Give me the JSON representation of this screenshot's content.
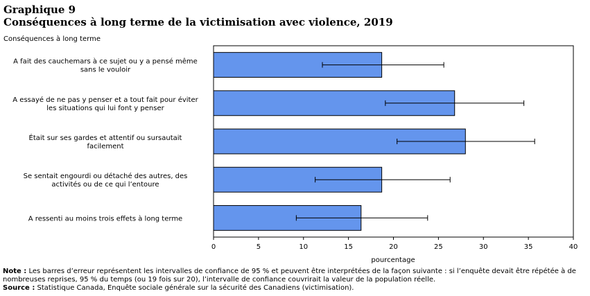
{
  "header": {
    "chart_number": "Graphique 9",
    "title": "Conséquences à long terme de la victimisation avec violence, 2019"
  },
  "notes": {
    "note_label": "Note :",
    "note_text": " Les barres d’erreur représentent les intervalles de confiance de 95 % et peuvent être interprétées de la façon suivante : si l’enquête devait être répétée à de nombreuses reprises, 95 % du temps (ou 19 fois sur 20), l’intervalle de confiance couvrirait la valeur de la population réelle.",
    "source_label": "Source :",
    "source_text": " Statistique Canada, Enquête sociale générale sur la sécurité des Canadiens (victimisation)."
  },
  "chart_data": {
    "type": "bar",
    "orientation": "horizontal",
    "ylabel": "Conséquences à long terme",
    "xlabel": "pourcentage",
    "xlim": [
      0,
      40
    ],
    "xticks": [
      0,
      5,
      10,
      15,
      20,
      25,
      30,
      35,
      40
    ],
    "grid": false,
    "bar_color": "#6495ED",
    "categories": [
      [
        "A fait des cauchemars à ce sujet ou y a pensé même",
        "sans le vouloir"
      ],
      [
        "A essayé de ne pas y penser et a tout fait pour éviter",
        "les situations qui lui font y penser"
      ],
      [
        "Était sur ses gardes et attentif ou sursautait",
        "facilement"
      ],
      [
        "Se sentait engourdi ou détaché des autres, des",
        "activités ou de ce qui l’entoure"
      ],
      [
        "A ressenti au moins trois effets à long terme"
      ]
    ],
    "values": [
      18.7,
      26.8,
      28.0,
      18.7,
      16.4
    ],
    "error_low": [
      12.1,
      19.1,
      20.4,
      11.3,
      9.2
    ],
    "error_high": [
      25.6,
      34.5,
      35.7,
      26.3,
      23.8
    ]
  }
}
